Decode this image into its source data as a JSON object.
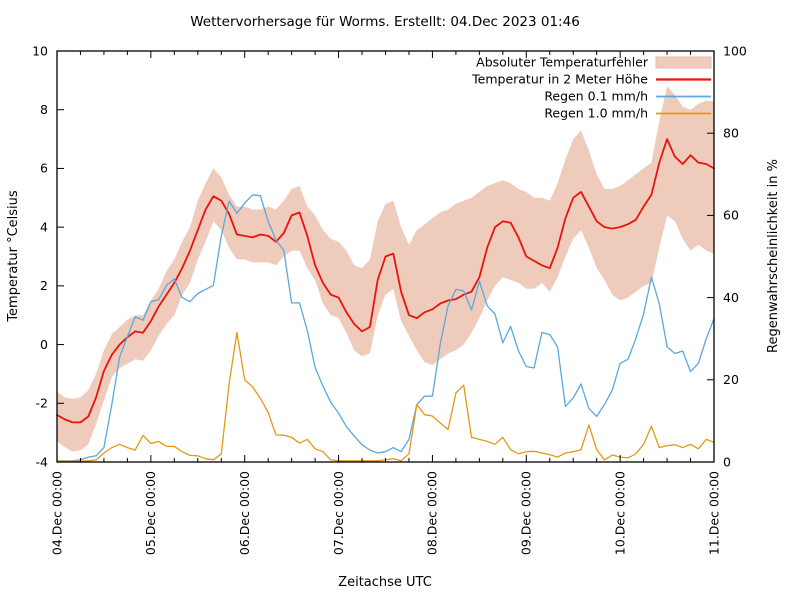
{
  "page": {
    "background": "#ffffff",
    "border_color": "#000000"
  },
  "header": {
    "title": "Wettervorhersage für Worms. Erstellt: 04.Dec 2023 01:46"
  },
  "chart_data": {
    "type": "line",
    "title": "Wettervorhersage für Worms. Erstellt: 04.Dec 2023 01:46",
    "xlabel": "Zeitachse UTC",
    "ylabel_left": "Temperatur °Celsius",
    "ylabel_right": "Regenwahrscheinlichkeit in %",
    "grid": false,
    "legend_position": "top-right-inside",
    "x_axis": {
      "start_hour": 0,
      "step_hours": 2,
      "end_hour": 168,
      "major_tick_every_hours": 24,
      "minor_tick_every_hours": 6,
      "tick_labels": [
        "04.Dec 00:00",
        "05.Dec 00:00",
        "06.Dec 00:00",
        "07.Dec 00:00",
        "08.Dec 00:00",
        "09.Dec 00:00",
        "10.Dec 00:00",
        "11.Dec 00:00"
      ]
    },
    "y_left": {
      "range": [
        -4,
        10
      ],
      "ticks": [
        10,
        8,
        6,
        4,
        2,
        0,
        -2,
        -4
      ]
    },
    "y_right": {
      "range": [
        0,
        100
      ],
      "ticks": [
        100,
        80,
        60,
        40,
        20,
        0
      ]
    },
    "series": [
      {
        "id": "error-band",
        "name": "Absoluter Temperaturfehler",
        "type": "band",
        "axis": "left",
        "color": "#efcbbc",
        "edge_color": "#e5bcab",
        "low": [
          -3.3,
          -3.5,
          -3.65,
          -3.6,
          -3.4,
          -2.7,
          -1.9,
          -1.1,
          -0.8,
          -0.65,
          -0.5,
          -0.55,
          -0.2,
          0.3,
          0.7,
          1,
          1.7,
          2.1,
          2.9,
          3.5,
          4.2,
          3.9,
          3.3,
          2.9,
          2.9,
          2.8,
          2.8,
          2.8,
          2.7,
          3,
          3.2,
          3.2,
          2.6,
          2.2,
          1.4,
          1,
          0.9,
          0.4,
          -0.2,
          -0.4,
          -0.3,
          1,
          1.7,
          1.9,
          0.8,
          0.3,
          -0.2,
          -0.6,
          -0.7,
          -0.5,
          -0.3,
          -0.2,
          0,
          0.4,
          0.9,
          1.5,
          2,
          2.3,
          2.2,
          2.1,
          1.9,
          1.9,
          2.1,
          1.8,
          2.3,
          3,
          3.6,
          3.9,
          3.3,
          2.6,
          2.2,
          1.7,
          1.5,
          1.6,
          1.8,
          2,
          2.1,
          3.3,
          4.4,
          4.2,
          3.6,
          3.2,
          3.4,
          3.2,
          3.1
        ],
        "high": [
          -1.6,
          -1.8,
          -1.85,
          -1.8,
          -1.55,
          -1,
          -0.2,
          0.35,
          0.6,
          0.85,
          1,
          1,
          1.5,
          1.9,
          2.5,
          2.9,
          3.5,
          4,
          4.9,
          5.5,
          6,
          5.7,
          5.1,
          4.7,
          4.7,
          4.6,
          4.6,
          4.7,
          4.6,
          4.9,
          5.3,
          5.4,
          4.7,
          4.4,
          3.9,
          3.6,
          3.5,
          3.2,
          2.7,
          2.6,
          2.9,
          4.2,
          4.8,
          4.9,
          4,
          3.4,
          3.9,
          4.1,
          4.3,
          4.5,
          4.6,
          4.8,
          4.9,
          5,
          5.2,
          5.4,
          5.5,
          5.6,
          5.5,
          5.3,
          5.2,
          5,
          5,
          4.9,
          5.5,
          6.3,
          7,
          7.3,
          6.6,
          5.8,
          5.3,
          5.3,
          5.4,
          5.6,
          5.8,
          6,
          6.2,
          7.6,
          8.8,
          8.5,
          8.1,
          8,
          8.2,
          8.3,
          8.3
        ]
      },
      {
        "id": "temperature-line",
        "name": "Temperatur in 2 Meter Höhe",
        "type": "line",
        "axis": "left",
        "color": "#e8140c",
        "width": 1.8,
        "values": [
          -2.4,
          -2.55,
          -2.65,
          -2.65,
          -2.45,
          -1.8,
          -0.9,
          -0.35,
          0,
          0.25,
          0.45,
          0.4,
          0.8,
          1.3,
          1.7,
          2.1,
          2.6,
          3.2,
          3.9,
          4.6,
          5.05,
          4.9,
          4.45,
          3.75,
          3.7,
          3.65,
          3.75,
          3.7,
          3.5,
          3.8,
          4.4,
          4.5,
          3.7,
          2.7,
          2.1,
          1.7,
          1.6,
          1.1,
          0.7,
          0.45,
          0.6,
          2.2,
          3,
          3.1,
          1.8,
          1,
          0.9,
          1.1,
          1.2,
          1.4,
          1.5,
          1.55,
          1.7,
          1.8,
          2.3,
          3.3,
          4,
          4.2,
          4.15,
          3.65,
          3,
          2.85,
          2.7,
          2.6,
          3.3,
          4.3,
          5,
          5.2,
          4.7,
          4.2,
          4,
          3.95,
          4,
          4.1,
          4.25,
          4.7,
          5.1,
          6.2,
          7,
          6.4,
          6.15,
          6.45,
          6.2,
          6.15,
          6
        ]
      },
      {
        "id": "rain-01-line",
        "name": "Regen 0.1 mm/h",
        "type": "line",
        "axis": "right",
        "color": "#5ba8dc",
        "width": 1.3,
        "values": [
          0.3,
          0.3,
          0.3,
          0.5,
          1.2,
          1.5,
          3.5,
          14,
          25.5,
          30.5,
          35.3,
          34.5,
          39,
          39.5,
          43,
          44.5,
          40,
          39,
          41,
          42,
          43,
          55,
          63.5,
          60.5,
          63,
          65,
          64.8,
          58.5,
          54,
          51.5,
          38.7,
          38.7,
          32,
          23,
          18.5,
          14.5,
          11.9,
          8.6,
          6.3,
          4.2,
          2.9,
          2.2,
          2.5,
          3.5,
          2.5,
          5.5,
          14,
          16,
          16,
          28.8,
          38,
          42,
          41.6,
          37,
          44,
          38,
          36,
          29,
          33,
          27,
          23.2,
          22.9,
          31.5,
          31,
          28,
          13.5,
          15.6,
          19,
          13,
          11.1,
          14,
          17.5,
          24,
          25,
          30,
          36,
          45,
          38.5,
          28,
          26.4,
          27,
          22,
          24,
          30,
          34.9
        ]
      },
      {
        "id": "rain-10-line",
        "name": "Regen 1.0 mm/h",
        "type": "line",
        "axis": "right",
        "color": "#e09a18",
        "width": 1.3,
        "values": [
          0.2,
          0.2,
          0.2,
          0.2,
          0.3,
          0.5,
          2.2,
          3.5,
          4.3,
          3.5,
          2.9,
          6.5,
          4.5,
          5,
          3.8,
          3.8,
          2.5,
          1.6,
          1.5,
          0.8,
          0.5,
          2,
          19,
          31.5,
          20,
          18.3,
          15.5,
          12,
          6.6,
          6.5,
          6,
          4.6,
          5.5,
          3.2,
          2.5,
          0.5,
          0.3,
          0.3,
          0.3,
          0.3,
          0.3,
          0.3,
          0.5,
          0.8,
          0.3,
          2,
          14,
          11.5,
          11.2,
          9.5,
          7.9,
          16.8,
          18.7,
          6,
          5.5,
          5,
          4.3,
          6,
          3,
          2,
          2.5,
          2.6,
          2.2,
          1.8,
          1.2,
          2.2,
          2.5,
          3,
          9,
          3,
          0.5,
          1.7,
          1.2,
          1,
          2,
          4.3,
          8.7,
          3.5,
          4,
          4.2,
          3.5,
          4.3,
          3.2,
          5.5,
          4.8
        ]
      }
    ]
  }
}
